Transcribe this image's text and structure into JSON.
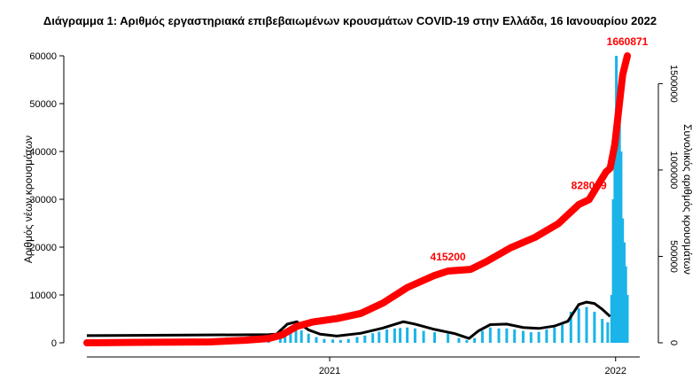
{
  "chart_data": {
    "type": "bar",
    "title": "Διάγραμμα 1: Αριθμός εργαστηριακά επιβεβαιωμένων κρουσμάτων COVID-19 στην Ελλάδα, 16 Ιανουαρίου 2022",
    "xlabel": "",
    "ylabel": "Αριθμός νέων κρουσμάτων",
    "y2label": "Συνολικός αριθμός κρουσμάτων",
    "x_range": [
      "2020-02-26",
      "2022-01-16"
    ],
    "ylim": [
      0,
      60000
    ],
    "y2lim": [
      0,
      1660871
    ],
    "x_ticks": [
      {
        "date": "2021-01-01",
        "label": "2021"
      },
      {
        "date": "2022-01-01",
        "label": "2022"
      }
    ],
    "y_ticks": [
      "0",
      "10000",
      "20000",
      "30000",
      "40000",
      "50000",
      "60000"
    ],
    "y2_ticks": [
      "0",
      "500000",
      "1000000",
      "1500000"
    ],
    "grid": false,
    "colors": {
      "daily": "#1ab4e8",
      "seven_day_avg": "#000000",
      "cumulative": "#ff0000"
    },
    "series": [
      {
        "kind": "bar",
        "points": [
          [
            "2020-03-15",
            50
          ],
          [
            "2020-04-15",
            80
          ],
          [
            "2020-05-15",
            20
          ],
          [
            "2020-06-15",
            20
          ],
          [
            "2020-07-15",
            40
          ],
          [
            "2020-08-15",
            200
          ],
          [
            "2020-09-15",
            300
          ],
          [
            "2020-10-15",
            500
          ],
          [
            "2020-10-30",
            1300
          ],
          [
            "2020-11-05",
            2600
          ],
          [
            "2020-11-12",
            3100
          ],
          [
            "2020-11-19",
            3300
          ],
          [
            "2020-11-26",
            2600
          ],
          [
            "2020-12-05",
            1900
          ],
          [
            "2020-12-15",
            1200
          ],
          [
            "2020-12-25",
            800
          ],
          [
            "2021-01-05",
            700
          ],
          [
            "2021-01-15",
            600
          ],
          [
            "2021-01-25",
            800
          ],
          [
            "2021-02-05",
            1200
          ],
          [
            "2021-02-15",
            1500
          ],
          [
            "2021-02-25",
            2000
          ],
          [
            "2021-03-05",
            2300
          ],
          [
            "2021-03-15",
            2800
          ],
          [
            "2021-03-25",
            3000
          ],
          [
            "2021-04-01",
            3100
          ],
          [
            "2021-04-10",
            3200
          ],
          [
            "2021-04-20",
            3000
          ],
          [
            "2021-05-01",
            2500
          ],
          [
            "2021-05-15",
            2200
          ],
          [
            "2021-06-01",
            1900
          ],
          [
            "2021-06-15",
            1000
          ],
          [
            "2021-06-25",
            600
          ],
          [
            "2021-07-05",
            1000
          ],
          [
            "2021-07-15",
            2500
          ],
          [
            "2021-07-25",
            3200
          ],
          [
            "2021-08-05",
            3000
          ],
          [
            "2021-08-15",
            3000
          ],
          [
            "2021-08-25",
            2800
          ],
          [
            "2021-09-05",
            2500
          ],
          [
            "2021-09-15",
            2200
          ],
          [
            "2021-09-25",
            2300
          ],
          [
            "2021-10-05",
            2800
          ],
          [
            "2021-10-15",
            3200
          ],
          [
            "2021-10-25",
            3800
          ],
          [
            "2021-11-05",
            6500
          ],
          [
            "2021-11-15",
            7200
          ],
          [
            "2021-11-25",
            7500
          ],
          [
            "2021-12-05",
            6500
          ],
          [
            "2021-12-15",
            5000
          ],
          [
            "2021-12-22",
            4300
          ],
          [
            "2021-12-27",
            10000
          ],
          [
            "2021-12-29",
            30000
          ],
          [
            "2021-12-31",
            40000
          ],
          [
            "2022-01-02",
            60000
          ],
          [
            "2022-01-04",
            50000
          ],
          [
            "2022-01-06",
            47000
          ],
          [
            "2022-01-08",
            40000
          ],
          [
            "2022-01-10",
            26000
          ],
          [
            "2022-01-12",
            21000
          ],
          [
            "2022-01-14",
            16000
          ],
          [
            "2022-01-16",
            10000
          ]
        ]
      },
      {
        "kind": "line",
        "points": [
          [
            "2020-02-26",
            1500
          ],
          [
            "2020-10-15",
            1700
          ],
          [
            "2020-10-25",
            1800
          ],
          [
            "2020-11-08",
            3900
          ],
          [
            "2020-11-20",
            4400
          ],
          [
            "2020-12-05",
            2700
          ],
          [
            "2020-12-20",
            1800
          ],
          [
            "2021-01-10",
            1400
          ],
          [
            "2021-02-10",
            2000
          ],
          [
            "2021-03-10",
            3100
          ],
          [
            "2021-04-05",
            4400
          ],
          [
            "2021-04-20",
            3900
          ],
          [
            "2021-05-15",
            2800
          ],
          [
            "2021-06-10",
            1900
          ],
          [
            "2021-06-28",
            900
          ],
          [
            "2021-07-10",
            2500
          ],
          [
            "2021-07-25",
            3800
          ],
          [
            "2021-08-15",
            3900
          ],
          [
            "2021-09-05",
            3200
          ],
          [
            "2021-09-25",
            3000
          ],
          [
            "2021-10-15",
            3500
          ],
          [
            "2021-11-01",
            4500
          ],
          [
            "2021-11-15",
            8000
          ],
          [
            "2021-11-25",
            8500
          ],
          [
            "2021-12-05",
            8200
          ],
          [
            "2021-12-15",
            7000
          ],
          [
            "2021-12-25",
            5500
          ]
        ]
      },
      {
        "kind": "line",
        "points": [
          [
            "2020-02-26",
            0
          ],
          [
            "2020-05-01",
            2600
          ],
          [
            "2020-08-01",
            5000
          ],
          [
            "2020-09-15",
            15000
          ],
          [
            "2020-10-15",
            25000
          ],
          [
            "2020-11-01",
            45000
          ],
          [
            "2020-11-20",
            95000
          ],
          [
            "2020-12-10",
            120000
          ],
          [
            "2021-01-10",
            140000
          ],
          [
            "2021-02-10",
            170000
          ],
          [
            "2021-03-10",
            230000
          ],
          [
            "2021-04-10",
            320000
          ],
          [
            "2021-05-15",
            390000
          ],
          [
            "2021-06-01",
            415200
          ],
          [
            "2021-06-30",
            425000
          ],
          [
            "2021-07-20",
            470000
          ],
          [
            "2021-08-20",
            550000
          ],
          [
            "2021-09-20",
            610000
          ],
          [
            "2021-10-20",
            690000
          ],
          [
            "2021-11-15",
            800000
          ],
          [
            "2021-11-28",
            828000
          ],
          [
            "2021-12-20",
            990000
          ],
          [
            "2021-12-25",
            1010000
          ],
          [
            "2021-12-31",
            1150000
          ],
          [
            "2022-01-05",
            1350000
          ],
          [
            "2022-01-10",
            1550000
          ],
          [
            "2022-01-16",
            1660871
          ]
        ]
      }
    ],
    "annotations": [
      {
        "text": "415200",
        "date": "2021-06-01",
        "value": 415200
      },
      {
        "text": "828009",
        "date": "2021-11-28",
        "value": 828009
      },
      {
        "text": "1660871",
        "date": "2022-01-16",
        "value": 1660871
      }
    ]
  }
}
